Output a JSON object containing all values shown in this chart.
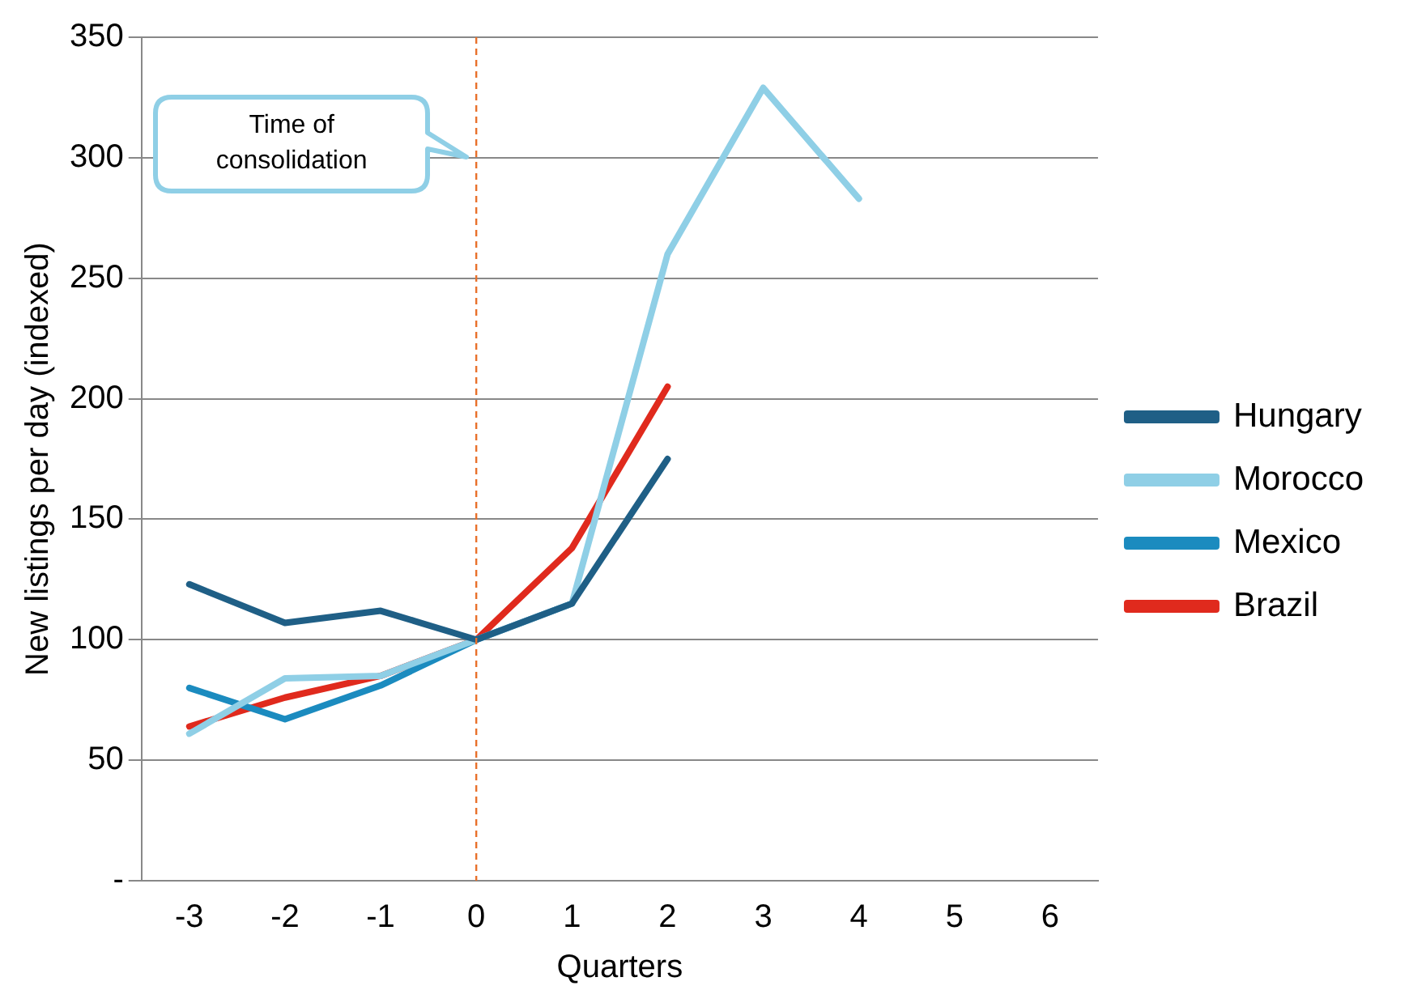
{
  "chart_data": {
    "type": "line",
    "xlabel": "Quarters",
    "ylabel": "New listings per day (indexed)",
    "categories": [
      "-3",
      "-2",
      "-1",
      "0",
      "1",
      "2",
      "3",
      "4",
      "5",
      "6"
    ],
    "series": [
      {
        "name": "Hungary",
        "color": "#1f5f86",
        "values": [
          123,
          107,
          112,
          100,
          115,
          175,
          null,
          null,
          null,
          null
        ]
      },
      {
        "name": "Morocco",
        "color": "#8fcfe6",
        "values": [
          61,
          84,
          85,
          100,
          115,
          260,
          329,
          283,
          null,
          null
        ]
      },
      {
        "name": "Mexico",
        "color": "#1b8bbf",
        "values": [
          80,
          67,
          81,
          100,
          115,
          null,
          null,
          null,
          null,
          null
        ]
      },
      {
        "name": "Brazil",
        "color": "#e02a1d",
        "values": [
          64,
          76,
          85,
          100,
          138,
          205,
          null,
          null,
          null,
          null
        ]
      }
    ],
    "ylim": [
      0,
      350
    ],
    "yticks": [
      {
        "value": 0,
        "label": "-"
      },
      50,
      100,
      150,
      200,
      250,
      300,
      350
    ],
    "grid": "y",
    "legend": "right",
    "marker": "none",
    "line_style": "solid",
    "ref_lines": [
      {
        "axis": "x",
        "value": "0",
        "color": "#e8702a",
        "line_style": "dashed"
      }
    ],
    "annotations": [
      "Time of\nconsolidation"
    ]
  }
}
